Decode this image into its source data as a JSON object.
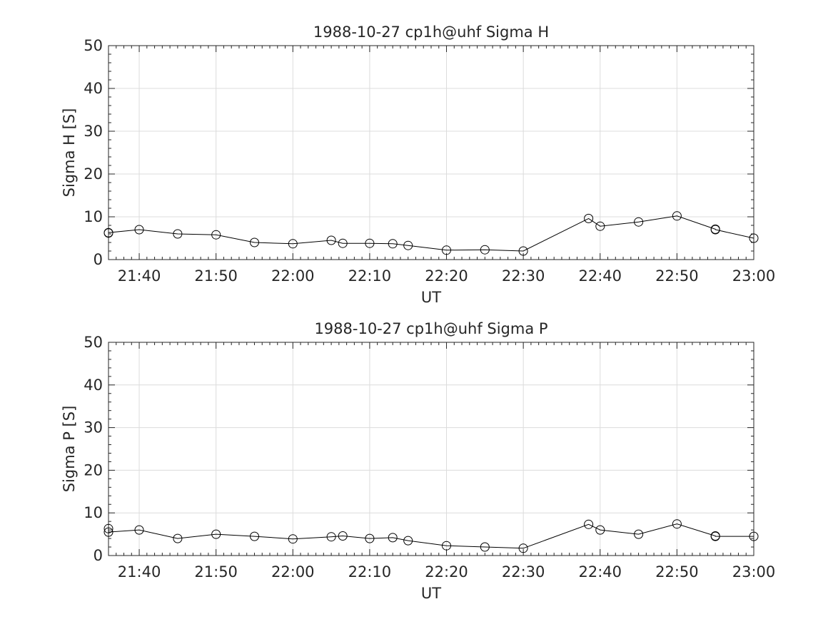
{
  "chart_data": [
    {
      "type": "line",
      "title": "1988-10-27  cp1h@uhf Sigma H",
      "xlabel": "UT",
      "ylabel": "Sigma H [S]",
      "xlim": [
        "21:36",
        "23:00"
      ],
      "ylim": [
        0,
        50
      ],
      "xticks": [
        "21:40",
        "21:50",
        "22:00",
        "22:10",
        "22:20",
        "22:30",
        "22:40",
        "22:50",
        "23:00"
      ],
      "yticks": [
        0,
        10,
        20,
        30,
        40,
        50
      ],
      "grid": true,
      "marker": "open-circle",
      "series": [
        {
          "x": [
            "21:36",
            "21:36",
            "21:40",
            "21:45",
            "21:50",
            "21:55",
            "22:00",
            "22:05",
            "22:06:30",
            "22:10",
            "22:13",
            "22:15",
            "22:20",
            "22:25",
            "22:30",
            "22:38:30",
            "22:40",
            "22:45",
            "22:50",
            "22:55",
            "22:55",
            "23:00"
          ],
          "y": [
            6.2,
            6.3,
            7.0,
            6.0,
            5.8,
            4.0,
            3.7,
            4.5,
            3.8,
            3.8,
            3.7,
            3.3,
            2.2,
            2.3,
            2.0,
            9.6,
            7.8,
            8.8,
            10.2,
            7.1,
            7.0,
            5.0
          ]
        }
      ]
    },
    {
      "type": "line",
      "title": "1988-10-27  cp1h@uhf Sigma P",
      "xlabel": "UT",
      "ylabel": "Sigma P [S]",
      "xlim": [
        "21:36",
        "23:00"
      ],
      "ylim": [
        0,
        50
      ],
      "xticks": [
        "21:40",
        "21:50",
        "22:00",
        "22:10",
        "22:20",
        "22:30",
        "22:40",
        "22:50",
        "23:00"
      ],
      "yticks": [
        0,
        10,
        20,
        30,
        40,
        50
      ],
      "grid": true,
      "marker": "open-circle",
      "series": [
        {
          "x": [
            "21:36",
            "21:36",
            "21:40",
            "21:45",
            "21:50",
            "21:55",
            "22:00",
            "22:05",
            "22:06:30",
            "22:10",
            "22:13",
            "22:15",
            "22:20",
            "22:25",
            "22:30",
            "22:38:30",
            "22:40",
            "22:45",
            "22:50",
            "22:55",
            "22:55",
            "23:00"
          ],
          "y": [
            6.3,
            5.5,
            6.0,
            4.0,
            5.0,
            4.5,
            3.9,
            4.4,
            4.6,
            4.0,
            4.2,
            3.5,
            2.3,
            2.0,
            1.7,
            7.3,
            6.0,
            5.0,
            7.4,
            4.6,
            4.5,
            4.5
          ]
        }
      ]
    }
  ]
}
